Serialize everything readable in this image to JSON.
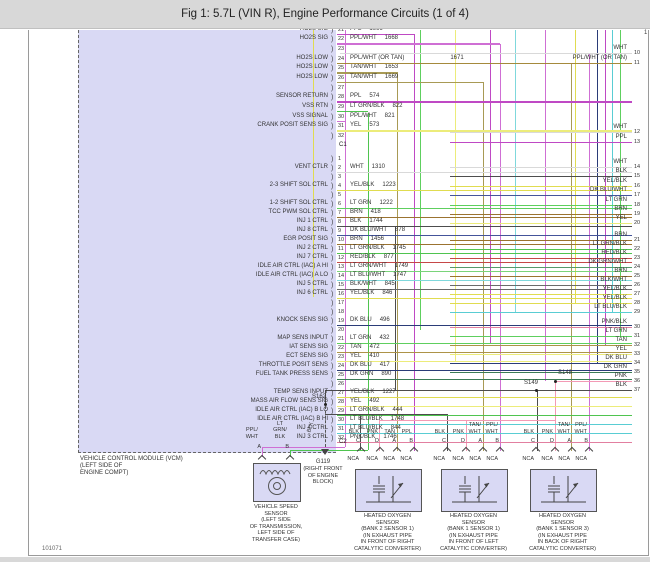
{
  "title": "Fig 1: 5.7L (VIN R), Engine Performance Circuits (1 of 4)",
  "footer": {
    "figure_number": "101071"
  },
  "corner_mark": "1",
  "vcm": {
    "caption_lines": [
      "VEHICLE CONTROL MODULE (VCM)",
      "(LEFT SIDE OF",
      "ENGINE COMPT)"
    ],
    "connectors": [
      {
        "id": "C1",
        "rows": [
          {
            "pin": "21",
            "color": "PPL",
            "wire": "1666",
            "circuit": "HO2S SIG"
          },
          {
            "pin": "22",
            "color": "PPL/WHT",
            "wire": "1668",
            "circuit": "HO2S SIG"
          },
          {
            "pin": "23"
          },
          {
            "pin": "24",
            "color": "PPL/WHT (OR TAN)",
            "wire": "1671",
            "circuit": "HO2S LOW"
          },
          {
            "pin": "25",
            "color": "TAN/WHT",
            "wire": "1653",
            "circuit": "HO2S LOW"
          },
          {
            "pin": "26",
            "color": "TAN/WHT",
            "wire": "1669",
            "circuit": "HO2S LOW"
          },
          {
            "pin": "27"
          },
          {
            "pin": "28",
            "color": "PPL",
            "wire": "574",
            "circuit": "SENSOR RETURN"
          },
          {
            "pin": "29",
            "color": "LT GRN/BLK",
            "wire": "822",
            "circuit": "VSS RTN"
          },
          {
            "pin": "30",
            "color": "PPL/WHT",
            "wire": "821",
            "circuit": "VSS SIGNAL"
          },
          {
            "pin": "31",
            "color": "YEL",
            "wire": "573",
            "circuit": "CRANK POSIT SENS SIG"
          },
          {
            "pin": "32"
          }
        ]
      },
      {
        "id": "C2",
        "rows": [
          {
            "pin": "1"
          },
          {
            "pin": "2",
            "color": "WHT",
            "wire": "1310",
            "circuit": "VENT CTLR"
          },
          {
            "pin": "3"
          },
          {
            "pin": "4",
            "color": "YEL/BLK",
            "wire": "1223",
            "circuit": "2-3 SHIFT SOL CTRL"
          },
          {
            "pin": "5"
          },
          {
            "pin": "6",
            "color": "LT GRN",
            "wire": "1222",
            "circuit": "1-2 SHIFT SOL CTRL"
          },
          {
            "pin": "7",
            "color": "BRN",
            "wire": "418",
            "circuit": "TCC PWM SOL CTRL"
          },
          {
            "pin": "8",
            "color": "BLK",
            "wire": "1744",
            "circuit": "INJ 1 CTRL"
          },
          {
            "pin": "9",
            "color": "DK BLU/WHT",
            "wire": "878",
            "circuit": "INJ 8 CTRL"
          },
          {
            "pin": "10",
            "color": "BRN",
            "wire": "1456",
            "circuit": "EGR POSIT SIG"
          },
          {
            "pin": "11",
            "color": "LT GRN/BLK",
            "wire": "1745",
            "circuit": "INJ 2 CTRL"
          },
          {
            "pin": "12",
            "color": "RED/BLK",
            "wire": "877",
            "circuit": "INJ 7 CTRL"
          },
          {
            "pin": "13",
            "color": "LT GRN/WHT",
            "wire": "1749",
            "circuit": "IDLE AIR CTRL (IAC) A HI"
          },
          {
            "pin": "14",
            "color": "LT BLU/WHT",
            "wire": "1747",
            "circuit": "IDLE AIR CTRL (IAC) A LO"
          },
          {
            "pin": "15",
            "color": "BLK/WHT",
            "wire": "845",
            "circuit": "INJ 5 CTRL"
          },
          {
            "pin": "16",
            "color": "YEL/BLK",
            "wire": "846",
            "circuit": "INJ 6 CTRL"
          },
          {
            "pin": "17"
          },
          {
            "pin": "18"
          },
          {
            "pin": "19",
            "color": "DK BLU",
            "wire": "496",
            "circuit": "KNOCK SENS SIG"
          },
          {
            "pin": "20"
          },
          {
            "pin": "21",
            "color": "LT GRN",
            "wire": "432",
            "circuit": "MAP SENS INPUT"
          },
          {
            "pin": "22",
            "color": "TAN",
            "wire": "472",
            "circuit": "IAT SENS SIG"
          },
          {
            "pin": "23",
            "color": "YEL",
            "wire": "410",
            "circuit": "ECT SENS SIG"
          },
          {
            "pin": "24",
            "color": "DK BLU",
            "wire": "417",
            "circuit": "THROTTLE POSIT SENS"
          },
          {
            "pin": "25",
            "color": "DK GRN",
            "wire": "890",
            "circuit": "FUEL TANK PRESS SENS"
          },
          {
            "pin": "26"
          },
          {
            "pin": "27",
            "color": "YEL/BLK",
            "wire": "1227",
            "circuit": "TEMP SENS INPUT"
          },
          {
            "pin": "28",
            "color": "YEL",
            "wire": "492",
            "circuit": "MASS AIR FLOW SENS SIG"
          },
          {
            "pin": "29",
            "color": "LT GRN/BLK",
            "wire": "444",
            "circuit": "IDLE AIR CTRL (IAC) B LO"
          },
          {
            "pin": "30",
            "color": "LT BLU/BLK",
            "wire": "1748",
            "circuit": "IDLE AIR CTRL (IAC) B HI"
          },
          {
            "pin": "31",
            "color": "LT BLU/BLK",
            "wire": "844",
            "circuit": "INJ 4 CTRL"
          },
          {
            "pin": "32",
            "color": "PNK/BLK",
            "wire": "1746",
            "circuit": "INJ 3 CTRL"
          }
        ]
      }
    ]
  },
  "right_edge": [
    {
      "pin": "10",
      "color": "WHT"
    },
    {
      "pin": "11",
      "color": "PPL/WHT (OR TAN)"
    },
    {
      "pin": "12",
      "color": "WHT"
    },
    {
      "pin": "13",
      "color": "PPL"
    },
    {
      "pin": "14",
      "color": "WHT"
    },
    {
      "pin": "15",
      "color": "BLK"
    },
    {
      "pin": "16",
      "color": "YEL/BLK"
    },
    {
      "pin": "17",
      "color": "DK BLU/WHT"
    },
    {
      "pin": "18",
      "color": "LT GRN"
    },
    {
      "pin": "19",
      "color": "BRN"
    },
    {
      "pin": "20",
      "color": "YEL"
    },
    {
      "pin": "21",
      "color": "BRN"
    },
    {
      "pin": "22",
      "color": "LT GRN/BLK"
    },
    {
      "pin": "23",
      "color": "RED/BLK"
    },
    {
      "pin": "24",
      "color": "DK GRN/WHT"
    },
    {
      "pin": "25",
      "color": "BRN"
    },
    {
      "pin": "26",
      "color": "BLK/WHT"
    },
    {
      "pin": "27",
      "color": "YEL/BLK"
    },
    {
      "pin": "28",
      "color": "YEL/BLK"
    },
    {
      "pin": "29",
      "color": "LT BLU/BLK"
    },
    {
      "pin": "30",
      "color": "PNK/BLK"
    },
    {
      "pin": "31",
      "color": "LT GRN"
    },
    {
      "pin": "32",
      "color": "TAN"
    },
    {
      "pin": "33",
      "color": "YEL"
    },
    {
      "pin": "34",
      "color": "DK BLU"
    },
    {
      "pin": "35",
      "color": "DK GRN"
    },
    {
      "pin": "36",
      "color": "PNK"
    },
    {
      "pin": "37",
      "color": "BLK"
    }
  ],
  "splices": [
    {
      "id": "S162"
    },
    {
      "id": "S148"
    },
    {
      "id": "S149"
    }
  ],
  "blk_branch_label": "BLK",
  "ground": {
    "id": "G119",
    "caption_lines": [
      "(RIGHT FRONT",
      "OF ENGINE",
      "BLOCK)"
    ]
  },
  "vss": {
    "caption_lines": [
      "VEHICLE SPEED",
      "SENSOR",
      "(LEFT SIDE",
      "OF TRANSMISSION,",
      "LEFT SIDE OF",
      "TRANSFER CASE)"
    ],
    "pins": [
      {
        "letter": "A",
        "color_lines": [
          "PPL/",
          "WHT"
        ]
      },
      {
        "letter": "B",
        "color_lines": [
          "LT",
          "GRN/",
          "BLK"
        ]
      }
    ]
  },
  "sensors": [
    {
      "caption_lines": [
        "HEATED OXYGEN",
        "SENSOR",
        "(BANK 2 SENSOR 1)",
        "(IN EXHAUST PIPE",
        "IN FRONT OF RIGHT",
        "CATALYTIC CONVERTER)"
      ],
      "nca": "NCA",
      "pins": [
        {
          "letter": "C",
          "color_lines": [
            "BLK"
          ]
        },
        {
          "letter": "D",
          "color_lines": [
            "PNK"
          ]
        },
        {
          "letter": "A",
          "color_lines": [
            "TAN"
          ]
        },
        {
          "letter": "B",
          "color_lines": [
            "PPL"
          ]
        }
      ]
    },
    {
      "caption_lines": [
        "HEATED OXYGEN",
        "SENSOR",
        "(BANK 1 SENSOR 1)",
        "(IN EXHAUST PIPE",
        "IN FRONT OF LEFT",
        "CATALYTIC CONVERTER)"
      ],
      "nca": "NCA",
      "pins": [
        {
          "letter": "C",
          "color_lines": [
            "BLK"
          ]
        },
        {
          "letter": "D",
          "color_lines": [
            "PNK"
          ]
        },
        {
          "letter": "A",
          "color_lines": [
            "TAN/",
            "WHT"
          ]
        },
        {
          "letter": "B",
          "color_lines": [
            "PPL/",
            "WHT"
          ]
        }
      ]
    },
    {
      "caption_lines": [
        "HEATED OXYGEN",
        "SENSOR",
        "(BANK 1 SENSOR 3)",
        "(IN EXHAUST PIPE",
        "IN BACK OF RIGHT",
        "CATALYTIC CONVERTER)"
      ],
      "nca": "NCA",
      "pins": [
        {
          "letter": "C",
          "color_lines": [
            "BLK"
          ]
        },
        {
          "letter": "D",
          "color_lines": [
            "PNK"
          ]
        },
        {
          "letter": "A",
          "color_lines": [
            "TAN/",
            "WHT"
          ]
        },
        {
          "letter": "B",
          "color_lines": [
            "PPL/",
            "WHT"
          ]
        }
      ]
    }
  ],
  "palette": {
    "PPL": "#bf49c4",
    "PPL/WHT": "#cf6fd4",
    "PPL/WHT (OR TAN)": "#a58a3c",
    "TAN": "#ad9348",
    "TAN/WHT": "#a89a55",
    "YEL": "#ecec7a",
    "YEL/BLK": "#e0dc50",
    "LT GRN": "#5ecf5e",
    "LT GRN/BLK": "#4fc44f",
    "LT GRN/WHT": "#7ad47a",
    "BRN": "#9b7330",
    "BLK": "#4d4d4d",
    "BLK/WHT": "#6a6a6a",
    "DK BLU": "#2b3c78",
    "DK BLU/WHT": "#44549a",
    "WHT": "#d9d9d9",
    "LT BLU/WHT": "#7fd8dc",
    "LT BLU/BLK": "#59cdd3",
    "RED/BLK": "#c64747",
    "DK GRN": "#3b7b55",
    "DK GRN/WHT": "#55996a",
    "PNK": "#f39ab5",
    "PNK/BLK": "#e27fa0",
    "block_fill": "#d9d9f4"
  }
}
